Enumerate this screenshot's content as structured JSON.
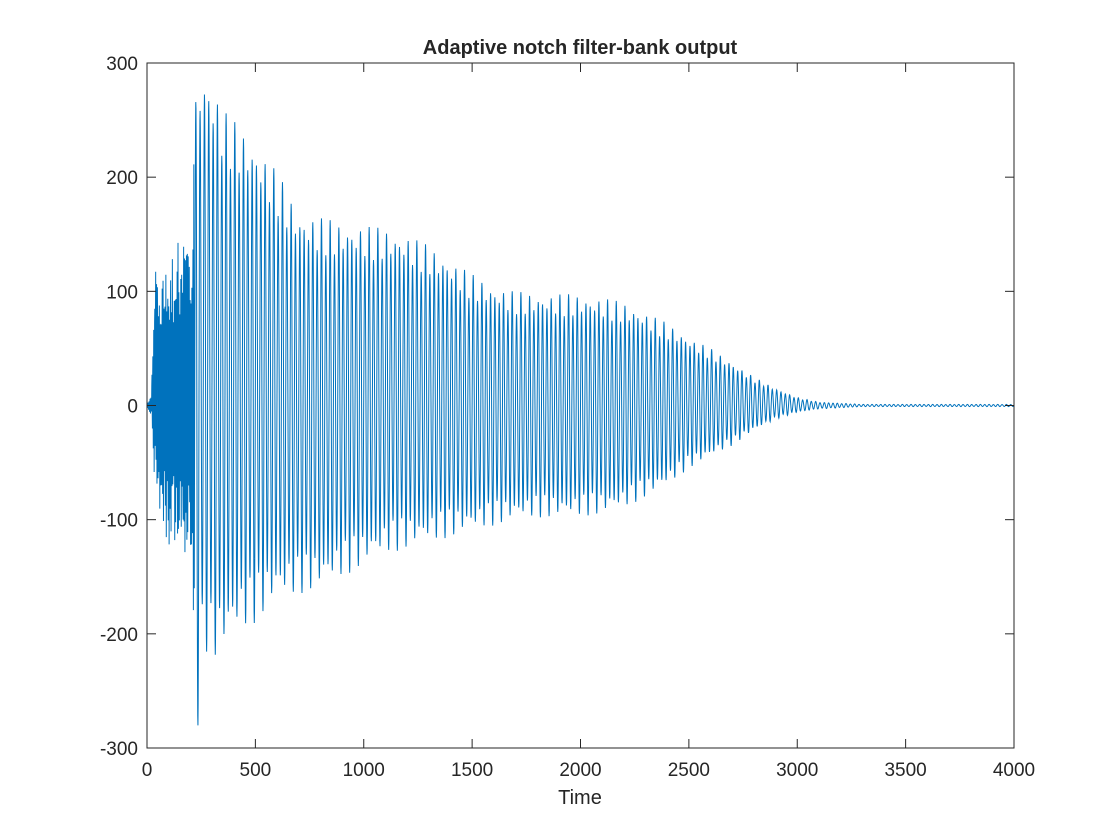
{
  "chart_data": {
    "type": "line",
    "title": "Adaptive notch filter-bank output",
    "xlabel": "Time",
    "ylabel": "",
    "xlim": [
      0,
      4000
    ],
    "ylim": [
      -300,
      300
    ],
    "xticks": [
      0,
      500,
      1000,
      1500,
      2000,
      2500,
      3000,
      3500,
      4000
    ],
    "yticks": [
      -300,
      -200,
      -100,
      0,
      100,
      200,
      300
    ],
    "grid": false,
    "legend": "none",
    "series_color": "#0072BD",
    "series": [
      {
        "envelope": {
          "x": [
            0,
            20,
            40,
            60,
            100,
            150,
            200,
            230,
            260,
            300,
            350,
            400,
            500,
            600,
            700,
            800,
            900,
            1000,
            1100,
            1200,
            1300,
            1400,
            1500,
            1600,
            1700,
            1800,
            1900,
            2000,
            2100,
            2200,
            2300,
            2400,
            2500,
            2600,
            2700,
            2800,
            2900,
            3000,
            3100,
            3200,
            3300,
            3500,
            4000
          ],
          "upper": [
            2,
            10,
            160,
            110,
            140,
            148,
            150,
            300,
            295,
            285,
            260,
            250,
            230,
            205,
            170,
            165,
            160,
            158,
            155,
            150,
            140,
            128,
            115,
            105,
            100,
            98,
            98,
            97,
            95,
            90,
            82,
            72,
            60,
            50,
            38,
            25,
            15,
            7,
            3,
            2,
            1,
            1,
            1
          ],
          "lower": [
            -2,
            -10,
            -100,
            -110,
            -130,
            -133,
            -150,
            -300,
            -210,
            -225,
            -215,
            -200,
            -190,
            -170,
            -165,
            -160,
            -150,
            -140,
            -130,
            -125,
            -120,
            -115,
            -110,
            -105,
            -100,
            -98,
            -98,
            -97,
            -95,
            -90,
            -80,
            -70,
            -55,
            -45,
            -35,
            -22,
            -12,
            -6,
            -3,
            -2,
            -1,
            -1,
            -1
          ]
        },
        "oscillation_period": 20
      }
    ]
  }
}
